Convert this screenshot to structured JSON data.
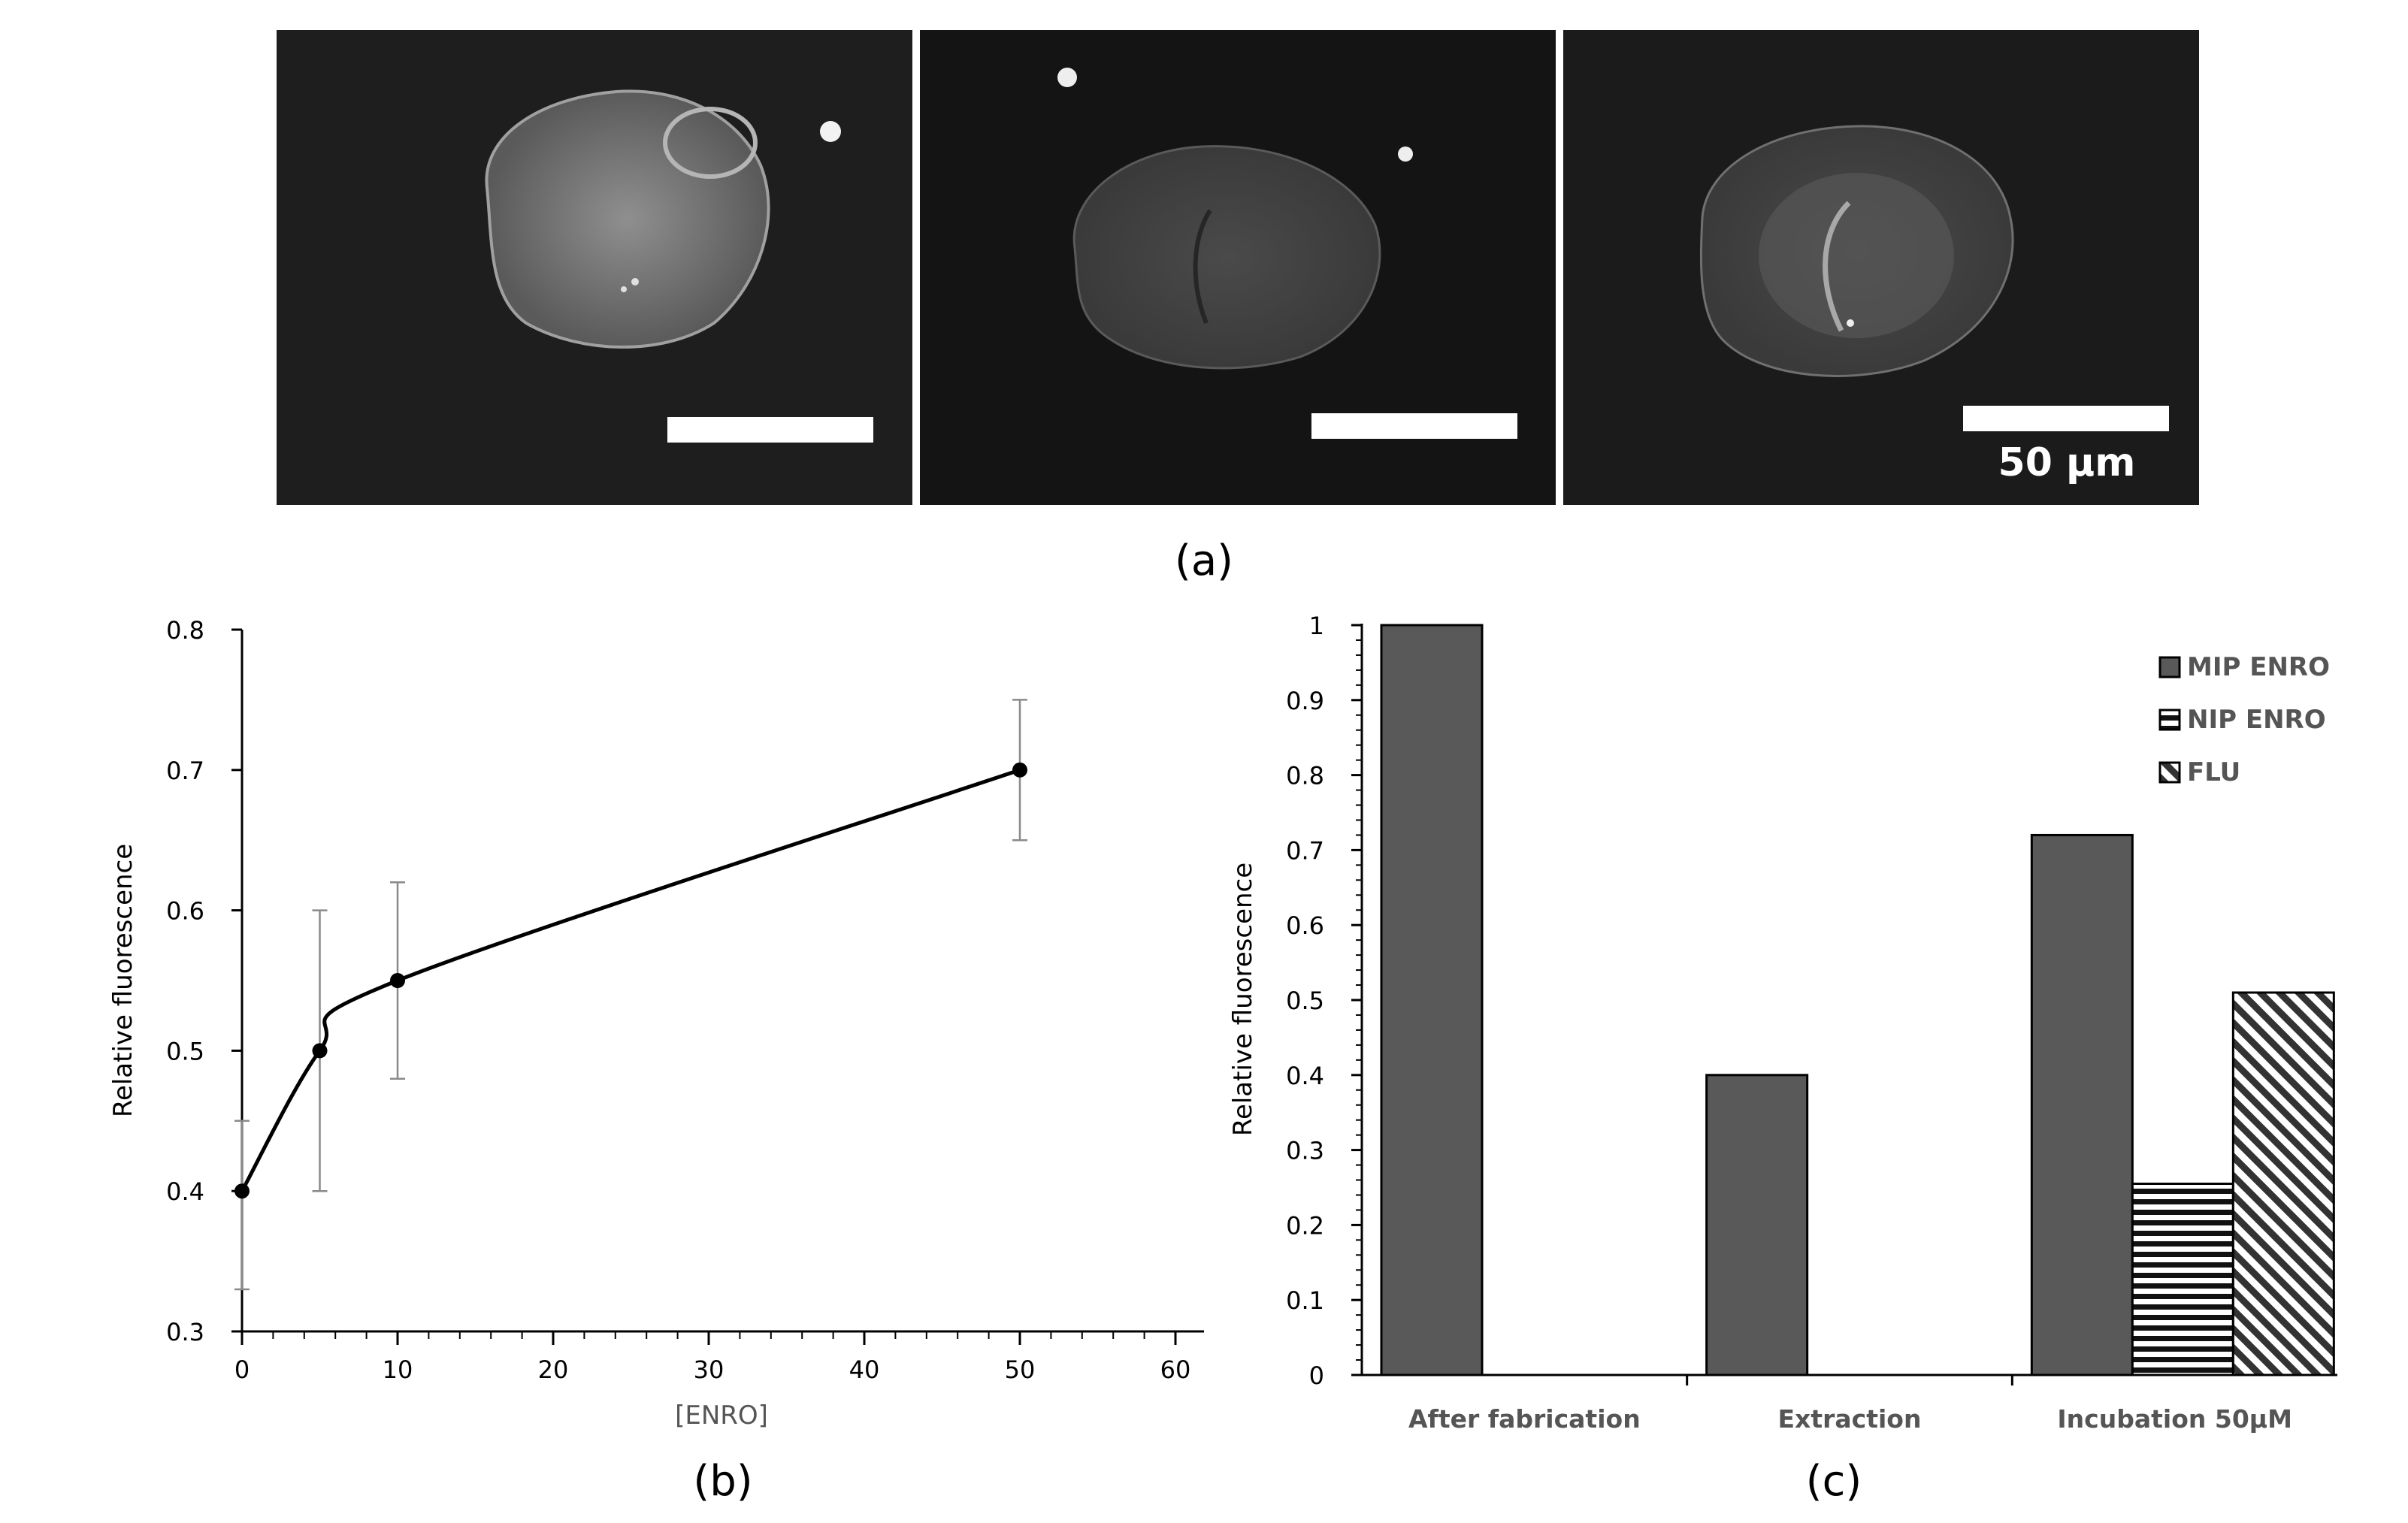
{
  "panel_a": {
    "caption": "(a)",
    "scale_label": "50 µm",
    "images": [
      "micrograph-1",
      "micrograph-2",
      "micrograph-3"
    ]
  },
  "chart_data": [
    {
      "type": "line",
      "caption": "(b)",
      "xlabel": "[ENRO]",
      "ylabel": "Relative fluorescence",
      "xlim": [
        0,
        60
      ],
      "ylim": [
        0.3,
        0.8
      ],
      "xticks": [
        "0",
        "10",
        "20",
        "30",
        "40",
        "50",
        "60"
      ],
      "yticks": [
        "0.3",
        "0.4",
        "0.5",
        "0.6",
        "0.7",
        "0.8"
      ],
      "grid": false,
      "x": [
        0,
        5,
        10,
        50
      ],
      "y": [
        0.4,
        0.5,
        0.55,
        0.7
      ],
      "error": [
        [
          0.33,
          0.45
        ],
        [
          0.4,
          0.6
        ],
        [
          0.48,
          0.62
        ],
        [
          0.65,
          0.75
        ]
      ],
      "line_color": "#000000"
    },
    {
      "type": "bar",
      "caption": "(c)",
      "ylabel": "Relative fluorescence",
      "ylim": [
        0,
        1
      ],
      "yticks": [
        "0",
        "0.1",
        "0.2",
        "0.3",
        "0.4",
        "0.5",
        "0.6",
        "0.7",
        "0.8",
        "0.9",
        "1"
      ],
      "categories": [
        "After fabrication",
        "Extraction",
        "Incubation 50µM"
      ],
      "series": [
        {
          "name": "MIP ENRO",
          "values": [
            1.0,
            0.4,
            0.72
          ],
          "fill": "solid",
          "color": "#595959"
        },
        {
          "name": "NIP ENRO",
          "values": [
            0,
            0,
            0.255
          ],
          "fill": "horizontal-stripes",
          "color": "#000000"
        },
        {
          "name": "FLU",
          "values": [
            0,
            0,
            0.51
          ],
          "fill": "diagonal-stripes",
          "color": "#000000"
        }
      ],
      "legend_position": "top-right",
      "grid": false
    }
  ]
}
